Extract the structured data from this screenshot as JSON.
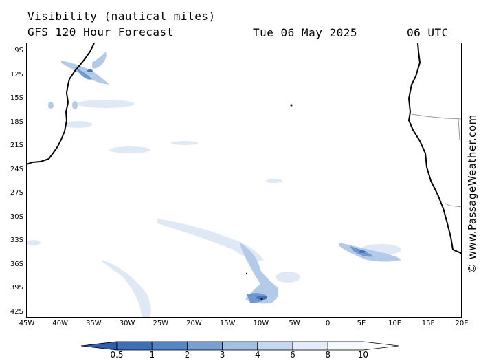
{
  "header": {
    "title_line1": "Visibility (nautical miles)",
    "title_line2": "GFS 120 Hour Forecast",
    "date": "Tue 06 May 2025",
    "time": "06 UTC"
  },
  "watermark": "© www.PassageWeather.com",
  "map": {
    "lat_labels": [
      "9S",
      "12S",
      "15S",
      "18S",
      "21S",
      "24S",
      "27S",
      "30S",
      "33S",
      "36S",
      "39S",
      "42S"
    ],
    "lon_labels": [
      "45W",
      "40W",
      "35W",
      "30W",
      "25W",
      "20W",
      "15W",
      "10W",
      "5W",
      "0",
      "5E",
      "10E",
      "15E",
      "20E"
    ],
    "colors": {
      "land_outline": "#000000",
      "border": "#999999",
      "vis_light": "#dde8f5",
      "vis_medium": "#b3cbe8",
      "vis_dark": "#6f98cf",
      "vis_darkest": "#3f72b5"
    }
  },
  "legend": {
    "labels": [
      "0.5",
      "1",
      "2",
      "3",
      "4",
      "6",
      "8",
      "10"
    ],
    "colors": [
      "#2f5fa8",
      "#3d70b6",
      "#5585c4",
      "#7aa0d2",
      "#a3bfe3",
      "#c6d8ef",
      "#e3ecf8",
      "#f5f8fd",
      "#ffffff"
    ]
  }
}
